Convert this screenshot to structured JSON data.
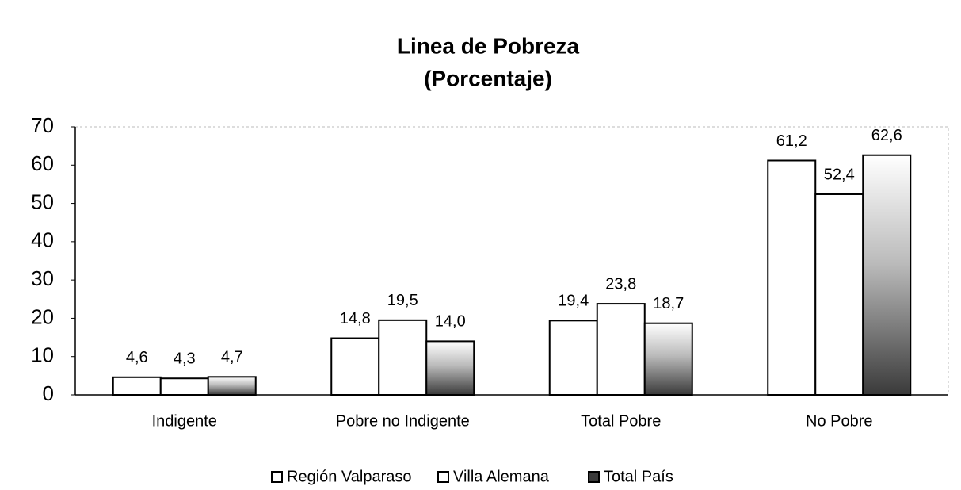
{
  "chart_data": {
    "type": "bar",
    "title": "Linea de Pobreza",
    "subtitle": "(Porcentaje)",
    "categories": [
      "Indigente",
      "Pobre no Indigente",
      "Total Pobre",
      "No Pobre"
    ],
    "series": [
      {
        "name": "Región Valparaso",
        "color": "#ffffff",
        "values": [
          4.6,
          14.8,
          19.4,
          61.2
        ],
        "value_labels": [
          "4,6",
          "14,8",
          "19,4",
          "61,2"
        ]
      },
      {
        "name": "Villa Alemana",
        "color": "#ffffff",
        "values": [
          4.3,
          19.5,
          23.8,
          52.4
        ],
        "value_labels": [
          "4,3",
          "19,5",
          "23,8",
          "52,4"
        ]
      },
      {
        "name": "Total País",
        "color": "#3a3a3a",
        "values": [
          4.7,
          14.0,
          18.7,
          62.6
        ],
        "value_labels": [
          "4,7",
          "14,0",
          "18,7",
          "62,6"
        ]
      }
    ],
    "ylim": [
      0,
      70
    ],
    "yticks": [
      0,
      10,
      20,
      30,
      40,
      50,
      60,
      70
    ],
    "grid": false,
    "legend": "bottom"
  }
}
